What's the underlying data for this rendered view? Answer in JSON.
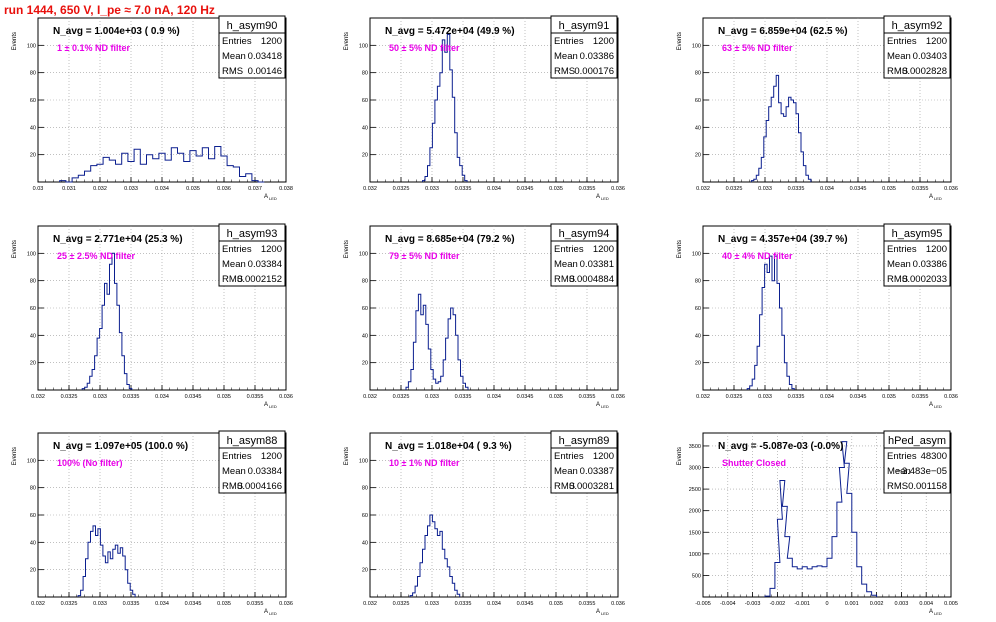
{
  "run_title": "run 1444,   650 V, I_pe ≈ 7.0 nA, 120 Hz",
  "colors": {
    "hist": "#0b1f8f",
    "run_title": "#e8100c",
    "filter_label": "#e800e8",
    "axis": "#000000",
    "grid": "#9a9a9a"
  },
  "chart_data": [
    {
      "type": "bar",
      "hist_name": "h_asym90",
      "stats": {
        "entries": "1200",
        "mean": "0.03418",
        "rms": "0.00146"
      },
      "n_avg_label": "N_avg = 1.004e+03 ( 0.9 %)",
      "filter_label": "1 ± 0.1% ND filter",
      "ylabel": "Events",
      "xlabel": "A_LED",
      "xlim": [
        0.03,
        0.038
      ],
      "ylim": [
        0,
        120
      ],
      "x_ticks": [
        "0.03",
        "0.031",
        "0.032",
        "0.033",
        "0.034",
        "0.035",
        "0.036",
        "0.037",
        "0.038"
      ],
      "y_ticks": [
        20,
        40,
        60,
        80,
        100
      ],
      "bins": [
        [
          0.0308,
          1
        ],
        [
          0.031,
          0
        ],
        [
          0.0312,
          3
        ],
        [
          0.0314,
          5
        ],
        [
          0.0316,
          8
        ],
        [
          0.0318,
          12
        ],
        [
          0.032,
          13
        ],
        [
          0.0322,
          18
        ],
        [
          0.0324,
          16
        ],
        [
          0.0326,
          13
        ],
        [
          0.0328,
          21
        ],
        [
          0.033,
          15
        ],
        [
          0.0332,
          24
        ],
        [
          0.0334,
          13
        ],
        [
          0.0336,
          20
        ],
        [
          0.0338,
          17
        ],
        [
          0.034,
          21
        ],
        [
          0.0342,
          16
        ],
        [
          0.0344,
          25
        ],
        [
          0.0346,
          21
        ],
        [
          0.0348,
          15
        ],
        [
          0.035,
          23
        ],
        [
          0.0352,
          19
        ],
        [
          0.0354,
          25
        ],
        [
          0.0356,
          17
        ],
        [
          0.0358,
          26
        ],
        [
          0.036,
          19
        ],
        [
          0.0362,
          12
        ],
        [
          0.0364,
          11
        ],
        [
          0.0366,
          4
        ],
        [
          0.0368,
          6
        ],
        [
          0.037,
          1
        ],
        [
          0.0372,
          0
        ]
      ]
    },
    {
      "type": "bar",
      "hist_name": "h_asym91",
      "stats": {
        "entries": "1200",
        "mean": "0.03386",
        "rms": "0.000176"
      },
      "n_avg_label": "N_avg = 5.472e+04 (49.9 %)",
      "filter_label": "50 ± 5% ND filter",
      "ylabel": "Events",
      "xlabel": "A_LED",
      "xlim": [
        0.032,
        0.038
      ],
      "ylim": [
        0,
        120
      ],
      "x_ticks": [
        "0.032",
        "0.0325",
        "0.033",
        "0.0335",
        "0.034",
        "0.0345",
        "0.035",
        "0.0355",
        "0.036"
      ],
      "y_ticks": [
        20,
        40,
        60,
        80,
        100
      ],
      "bins": [
        [
          0.0333,
          1
        ],
        [
          0.03336,
          4
        ],
        [
          0.03342,
          12
        ],
        [
          0.03348,
          25
        ],
        [
          0.03354,
          43
        ],
        [
          0.0336,
          60
        ],
        [
          0.03366,
          70
        ],
        [
          0.03372,
          80
        ],
        [
          0.03378,
          104
        ],
        [
          0.03384,
          95
        ],
        [
          0.0339,
          108
        ],
        [
          0.03396,
          82
        ],
        [
          0.03402,
          62
        ],
        [
          0.03408,
          36
        ],
        [
          0.03414,
          18
        ],
        [
          0.0342,
          12
        ],
        [
          0.03426,
          5
        ],
        [
          0.03432,
          1
        ]
      ]
    },
    {
      "type": "bar",
      "hist_name": "h_asym92",
      "stats": {
        "entries": "1200",
        "mean": "0.03403",
        "rms": "0.0002828"
      },
      "n_avg_label": "N_avg = 6.859e+04 (62.5 %)",
      "filter_label": "63 ± 5% ND filter",
      "ylabel": "Events",
      "xlabel": "A_LED",
      "xlim": [
        0.032,
        0.038
      ],
      "ylim": [
        0,
        120
      ],
      "x_ticks": [
        "0.032",
        "0.0325",
        "0.033",
        "0.0335",
        "0.034",
        "0.0345",
        "0.035",
        "0.0355",
        "0.036"
      ],
      "y_ticks": [
        20,
        40,
        60,
        80,
        100
      ],
      "bins": [
        [
          0.0332,
          1
        ],
        [
          0.03326,
          2
        ],
        [
          0.03332,
          5
        ],
        [
          0.03338,
          10
        ],
        [
          0.03344,
          18
        ],
        [
          0.0335,
          33
        ],
        [
          0.03356,
          45
        ],
        [
          0.03362,
          55
        ],
        [
          0.03368,
          62
        ],
        [
          0.03374,
          70
        ],
        [
          0.0338,
          78
        ],
        [
          0.03386,
          58
        ],
        [
          0.03392,
          50
        ],
        [
          0.03398,
          48
        ],
        [
          0.03404,
          55
        ],
        [
          0.0341,
          62
        ],
        [
          0.03416,
          60
        ],
        [
          0.03422,
          58
        ],
        [
          0.03428,
          50
        ],
        [
          0.03434,
          36
        ],
        [
          0.0344,
          22
        ],
        [
          0.03446,
          12
        ],
        [
          0.03452,
          5
        ],
        [
          0.03458,
          2
        ]
      ]
    },
    {
      "type": "bar",
      "hist_name": "h_asym93",
      "stats": {
        "entries": "1200",
        "mean": "0.03384",
        "rms": "0.0002152"
      },
      "n_avg_label": "N_avg = 2.771e+04 (25.3 %)",
      "filter_label": "25 ± 2.5% ND filter",
      "ylabel": "Events",
      "xlabel": "A_LED",
      "xlim": [
        0.032,
        0.038
      ],
      "ylim": [
        0,
        120
      ],
      "x_ticks": [
        "0.032",
        "0.0325",
        "0.033",
        "0.0335",
        "0.034",
        "0.0345",
        "0.035",
        "0.0355",
        "0.036"
      ],
      "y_ticks": [
        20,
        40,
        60,
        80,
        100
      ],
      "bins": [
        [
          0.0331,
          1
        ],
        [
          0.03316,
          2
        ],
        [
          0.03322,
          5
        ],
        [
          0.03328,
          10
        ],
        [
          0.03334,
          15
        ],
        [
          0.0334,
          25
        ],
        [
          0.03346,
          38
        ],
        [
          0.03352,
          45
        ],
        [
          0.03358,
          62
        ],
        [
          0.03364,
          78
        ],
        [
          0.0337,
          70
        ],
        [
          0.03376,
          92
        ],
        [
          0.03382,
          100
        ],
        [
          0.03388,
          78
        ],
        [
          0.03394,
          62
        ],
        [
          0.034,
          42
        ],
        [
          0.03406,
          25
        ],
        [
          0.03412,
          12
        ],
        [
          0.03418,
          4
        ],
        [
          0.03424,
          1
        ]
      ]
    },
    {
      "type": "bar",
      "hist_name": "h_asym94",
      "stats": {
        "entries": "1200",
        "mean": "0.03381",
        "rms": "0.0004884"
      },
      "n_avg_label": "N_avg = 8.685e+04 (79.2 %)",
      "filter_label": "79 ± 5% ND filter",
      "ylabel": "Events",
      "xlabel": "A_LED",
      "xlim": [
        0.032,
        0.038
      ],
      "ylim": [
        0,
        120
      ],
      "x_ticks": [
        "0.032",
        "0.0325",
        "0.033",
        "0.0335",
        "0.034",
        "0.0345",
        "0.035",
        "0.0355",
        "0.036"
      ],
      "y_ticks": [
        20,
        40,
        60,
        80,
        100
      ],
      "bins": [
        [
          0.0329,
          2
        ],
        [
          0.03296,
          6
        ],
        [
          0.03302,
          15
        ],
        [
          0.03308,
          35
        ],
        [
          0.03314,
          58
        ],
        [
          0.0332,
          70
        ],
        [
          0.03326,
          55
        ],
        [
          0.03332,
          62
        ],
        [
          0.03338,
          48
        ],
        [
          0.03344,
          30
        ],
        [
          0.0335,
          15
        ],
        [
          0.03356,
          8
        ],
        [
          0.03362,
          5
        ],
        [
          0.03368,
          6
        ],
        [
          0.03374,
          10
        ],
        [
          0.0338,
          22
        ],
        [
          0.03386,
          38
        ],
        [
          0.03392,
          52
        ],
        [
          0.03398,
          60
        ],
        [
          0.03404,
          55
        ],
        [
          0.0341,
          40
        ],
        [
          0.03416,
          22
        ],
        [
          0.03422,
          10
        ],
        [
          0.03428,
          5
        ],
        [
          0.03434,
          2
        ]
      ]
    },
    {
      "type": "bar",
      "hist_name": "h_asym95",
      "stats": {
        "entries": "1200",
        "mean": "0.03386",
        "rms": "0.0002033"
      },
      "n_avg_label": "N_avg = 4.357e+04 (39.7 %)",
      "filter_label": "40 ± 4% ND filter",
      "ylabel": "Events",
      "xlabel": "A_LED",
      "xlim": [
        0.032,
        0.038
      ],
      "ylim": [
        0,
        120
      ],
      "x_ticks": [
        "0.032",
        "0.0325",
        "0.033",
        "0.0335",
        "0.034",
        "0.0345",
        "0.035",
        "0.0355",
        "0.036"
      ],
      "y_ticks": [
        20,
        40,
        60,
        80,
        100
      ],
      "bins": [
        [
          0.0331,
          1
        ],
        [
          0.03316,
          3
        ],
        [
          0.03322,
          8
        ],
        [
          0.03328,
          18
        ],
        [
          0.03334,
          32
        ],
        [
          0.0334,
          55
        ],
        [
          0.03346,
          75
        ],
        [
          0.03352,
          92
        ],
        [
          0.03358,
          86
        ],
        [
          0.03364,
          98
        ],
        [
          0.0337,
          80
        ],
        [
          0.03376,
          98
        ],
        [
          0.03382,
          78
        ],
        [
          0.03388,
          60
        ],
        [
          0.03394,
          40
        ],
        [
          0.034,
          20
        ],
        [
          0.03406,
          10
        ],
        [
          0.03412,
          4
        ],
        [
          0.03418,
          1
        ]
      ]
    },
    {
      "type": "bar",
      "hist_name": "h_asym88",
      "stats": {
        "entries": "1200",
        "mean": "0.03384",
        "rms": "0.0004166"
      },
      "n_avg_label": "N_avg = 1.097e+05 (100.0 %)",
      "filter_label": "100% (No filter)",
      "ylabel": "Events",
      "xlabel": "A_LED",
      "xlim": [
        0.032,
        0.038
      ],
      "ylim": [
        0,
        120
      ],
      "x_ticks": [
        "0.032",
        "0.0325",
        "0.033",
        "0.0335",
        "0.034",
        "0.0345",
        "0.035",
        "0.0355",
        "0.036"
      ],
      "y_ticks": [
        20,
        40,
        60,
        80,
        100
      ],
      "bins": [
        [
          0.033,
          1
        ],
        [
          0.03306,
          5
        ],
        [
          0.03312,
          15
        ],
        [
          0.03318,
          28
        ],
        [
          0.03324,
          40
        ],
        [
          0.0333,
          48
        ],
        [
          0.03336,
          52
        ],
        [
          0.03342,
          45
        ],
        [
          0.03348,
          50
        ],
        [
          0.03354,
          38
        ],
        [
          0.0336,
          30
        ],
        [
          0.03366,
          25
        ],
        [
          0.03372,
          33
        ],
        [
          0.03378,
          28
        ],
        [
          0.03384,
          35
        ],
        [
          0.0339,
          38
        ],
        [
          0.03396,
          32
        ],
        [
          0.03402,
          36
        ],
        [
          0.03408,
          30
        ],
        [
          0.03414,
          20
        ],
        [
          0.0342,
          10
        ],
        [
          0.03426,
          5
        ],
        [
          0.03432,
          2
        ]
      ]
    },
    {
      "type": "bar",
      "hist_name": "h_asym89",
      "stats": {
        "entries": "1200",
        "mean": "0.03387",
        "rms": "0.0003281"
      },
      "n_avg_label": "N_avg = 1.018e+04 ( 9.3 %)",
      "filter_label": "10 ± 1% ND filter",
      "ylabel": "Events",
      "xlabel": "A_LED",
      "xlim": [
        0.032,
        0.038
      ],
      "ylim": [
        0,
        120
      ],
      "x_ticks": [
        "0.032",
        "0.0325",
        "0.033",
        "0.0335",
        "0.034",
        "0.0345",
        "0.035",
        "0.0355",
        "0.036"
      ],
      "y_ticks": [
        20,
        40,
        60,
        80,
        100
      ],
      "bins": [
        [
          0.033,
          1
        ],
        [
          0.03306,
          3
        ],
        [
          0.03312,
          8
        ],
        [
          0.03318,
          15
        ],
        [
          0.03324,
          25
        ],
        [
          0.0333,
          35
        ],
        [
          0.03336,
          45
        ],
        [
          0.03342,
          52
        ],
        [
          0.03348,
          60
        ],
        [
          0.03354,
          55
        ],
        [
          0.0336,
          50
        ],
        [
          0.03366,
          45
        ],
        [
          0.03372,
          48
        ],
        [
          0.03378,
          35
        ],
        [
          0.03384,
          28
        ],
        [
          0.0339,
          22
        ],
        [
          0.03396,
          15
        ],
        [
          0.03402,
          10
        ],
        [
          0.03408,
          5
        ],
        [
          0.03414,
          2
        ]
      ]
    },
    {
      "type": "bar",
      "hist_name": "hPed_asym",
      "stats": {
        "entries": "48300",
        "mean": "−3.483e−05",
        "rms": "0.001158"
      },
      "n_avg_label": "N_avg = -5.087e-03 (-0.0%)",
      "filter_label": "Shutter Closed",
      "ylabel": "Events",
      "xlabel": "A_LED",
      "xlim": [
        -0.005,
        0.005
      ],
      "ylim": [
        0,
        3800
      ],
      "x_ticks": [
        "-0.005",
        "-0.004",
        "-0.003",
        "-0.002",
        "-0.001",
        "0",
        "0.001",
        "0.002",
        "0.003",
        "0.004",
        "0.005"
      ],
      "y_ticks": [
        500,
        1000,
        1500,
        2000,
        2500,
        3000,
        3500
      ],
      "bins": [
        [
          -0.0024,
          20
        ],
        [
          -0.0022,
          200
        ],
        [
          -0.002,
          800
        ],
        [
          -0.0019,
          1800
        ],
        [
          -0.0018,
          2700
        ],
        [
          -0.0017,
          2100
        ],
        [
          -0.0016,
          1400
        ],
        [
          -0.0015,
          900
        ],
        [
          -0.0013,
          700
        ],
        [
          -0.0011,
          650
        ],
        [
          -0.0009,
          700
        ],
        [
          -0.0007,
          650
        ],
        [
          -0.0005,
          700
        ],
        [
          -0.0003,
          720
        ],
        [
          -0.0001,
          700
        ],
        [
          0.0001,
          900
        ],
        [
          0.0003,
          1400
        ],
        [
          0.0005,
          2200
        ],
        [
          0.0006,
          3000
        ],
        [
          0.0007,
          3600
        ],
        [
          0.0008,
          3100
        ],
        [
          0.0009,
          2400
        ],
        [
          0.0011,
          1500
        ],
        [
          0.0013,
          700
        ],
        [
          0.0015,
          300
        ],
        [
          0.0017,
          120
        ],
        [
          0.0019,
          40
        ]
      ]
    }
  ]
}
